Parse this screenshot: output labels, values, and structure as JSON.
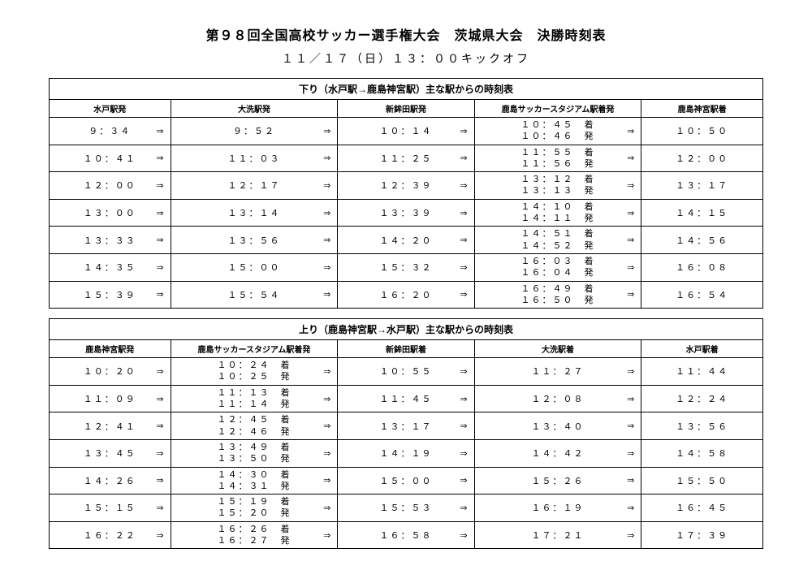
{
  "title": "第９８回全国高校サッカー選手権大会　茨城県大会　決勝時刻表",
  "subtitle": "１１／１７（日）１３：００キックオフ",
  "table1": {
    "header": "下り（水戸駅→鹿島神宮駅）主な駅からの時刻表",
    "columns": [
      "水戸駅発",
      "大洗駅発",
      "新鉾田駅発",
      "鹿島サッカースタジアム駅着発",
      "鹿島神宮駅着"
    ],
    "rows": [
      {
        "c1": "９：３４",
        "c2": "９：５２",
        "c3": "１０：１４",
        "c4a": "１０：４５",
        "c4d": "１０：４６",
        "c5": "１０：５０"
      },
      {
        "c1": "１０：４１",
        "c2": "１１：０３",
        "c3": "１１：２５",
        "c4a": "１１：５５",
        "c4d": "１１：５６",
        "c5": "１２：００"
      },
      {
        "c1": "１２：００",
        "c2": "１２：１７",
        "c3": "１２：３９",
        "c4a": "１３：１２",
        "c4d": "１３：１３",
        "c5": "１３：１７"
      },
      {
        "c1": "１３：００",
        "c2": "１３：１４",
        "c3": "１３：３９",
        "c4a": "１４：１０",
        "c4d": "１４：１１",
        "c5": "１４：１５"
      },
      {
        "c1": "１３：３３",
        "c2": "１３：５６",
        "c3": "１４：２０",
        "c4a": "１４：５１",
        "c4d": "１４：５２",
        "c5": "１４：５６"
      },
      {
        "c1": "１４：３５",
        "c2": "１５：００",
        "c3": "１５：３２",
        "c4a": "１６：０３",
        "c4d": "１６：０４",
        "c5": "１６：０８"
      },
      {
        "c1": "１５：３９",
        "c2": "１５：５４",
        "c3": "１６：２０",
        "c4a": "１６：４９",
        "c4d": "１６：５０",
        "c5": "１６：５４"
      }
    ]
  },
  "table2": {
    "header": "上り（鹿島神宮駅→水戸駅）主な駅からの時刻表",
    "columns": [
      "鹿島神宮駅発",
      "鹿島サッカースタジアム駅着発",
      "新鉾田駅着",
      "大洗駅着",
      "水戸駅着"
    ],
    "rows": [
      {
        "c1": "１０：２０",
        "c2a": "１０：２４",
        "c2d": "１０：２５",
        "c3": "１０：５５",
        "c4": "１１：２７",
        "c5": "１１：４４"
      },
      {
        "c1": "１１：０９",
        "c2a": "１１：１３",
        "c2d": "１１：１４",
        "c3": "１１：４５",
        "c4": "１２：０８",
        "c5": "１２：２４"
      },
      {
        "c1": "１２：４１",
        "c2a": "１２：４５",
        "c2d": "１２：４６",
        "c3": "１３：１７",
        "c4": "１３：４０",
        "c5": "１３：５６"
      },
      {
        "c1": "１３：４５",
        "c2a": "１３：４９",
        "c2d": "１３：５０",
        "c3": "１４：１９",
        "c4": "１４：４２",
        "c5": "１４：５８"
      },
      {
        "c1": "１４：２６",
        "c2a": "１４：３０",
        "c2d": "１４：３１",
        "c3": "１５：００",
        "c4": "１５：２６",
        "c5": "１５：５０"
      },
      {
        "c1": "１５：１５",
        "c2a": "１５：１９",
        "c2d": "１５：２０",
        "c3": "１５：５３",
        "c4": "１６：１９",
        "c5": "１６：４５"
      },
      {
        "c1": "１６：２２",
        "c2a": "１６：２６",
        "c2d": "１６：２７",
        "c3": "１６：５８",
        "c4": "１７：２１",
        "c5": "１７：３９"
      }
    ]
  },
  "labels": {
    "arrive": "着",
    "depart": "発",
    "arrow": "⇒"
  }
}
